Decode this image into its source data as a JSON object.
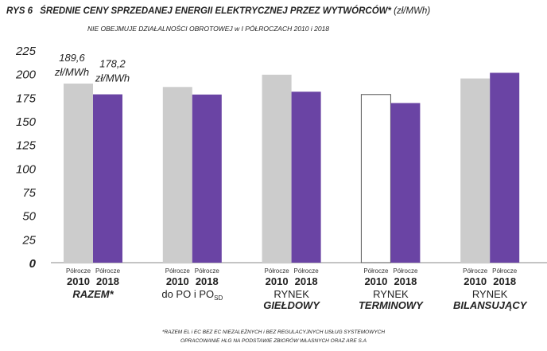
{
  "header": {
    "rys": "RYS 6",
    "title": "ŚREDNIE CENY SPRZEDANEJ ENERGII ELEKTRYCZNEJ PRZEZ WYTWÓRCÓW*",
    "unit": "(zł/MWh)",
    "subtitle": "NIE OBEJMUJE DZIAŁALNOŚCI OBROTOWEJ w I PÓŁROCZACH 2010 i 2018"
  },
  "footnotes": {
    "line1": "*RAZEM EL i EC BEZ EC NIEZALEŻNYCH i BEZ REGULACYJNYCH USŁUG SYSTEMOWYCH",
    "line2": "OPRACOWANIE HLG NA PODSTAWIE ZBIORÓW WŁASNYCH ORAZ ARE S.A"
  },
  "chart_data": {
    "type": "bar",
    "ylim": [
      0,
      225
    ],
    "yticks": [
      0,
      25,
      50,
      75,
      100,
      125,
      150,
      175,
      200,
      225
    ],
    "grid": false,
    "legend": "none",
    "colors": {
      "s2010": "#cccccc",
      "s2018": "#6a44a4",
      "s2010_outline": "#555555"
    },
    "tick_word": "Półrocze",
    "categories": [
      {
        "line1": "RAZEM*",
        "line2": "",
        "bold": true
      },
      {
        "line1": "do PO i PO",
        "sub": "SD",
        "line2": "",
        "bold": false
      },
      {
        "line1": "RYNEK",
        "line2": "GIEŁDOWY",
        "bold": false
      },
      {
        "line1": "RYNEK",
        "line2": "TERMINOWY",
        "bold": false
      },
      {
        "line1": "RYNEK",
        "line2": "BILANSUJĄCY",
        "bold": false
      }
    ],
    "series": [
      {
        "name": "2010",
        "values": [
          189.6,
          186,
          199,
          178,
          195
        ],
        "style": [
          "fill",
          "fill",
          "fill",
          "outline",
          "fill"
        ]
      },
      {
        "name": "2018",
        "values": [
          178.2,
          178,
          181,
          169,
          201
        ],
        "style": [
          "fill",
          "fill",
          "fill",
          "fill",
          "fill"
        ]
      }
    ],
    "annotations": [
      {
        "text1": "189,6",
        "text2": "zł/MWh",
        "series": 0,
        "category": 0
      },
      {
        "text1": "178,2",
        "text2": "zł/MWh",
        "series": 1,
        "category": 0
      }
    ]
  }
}
